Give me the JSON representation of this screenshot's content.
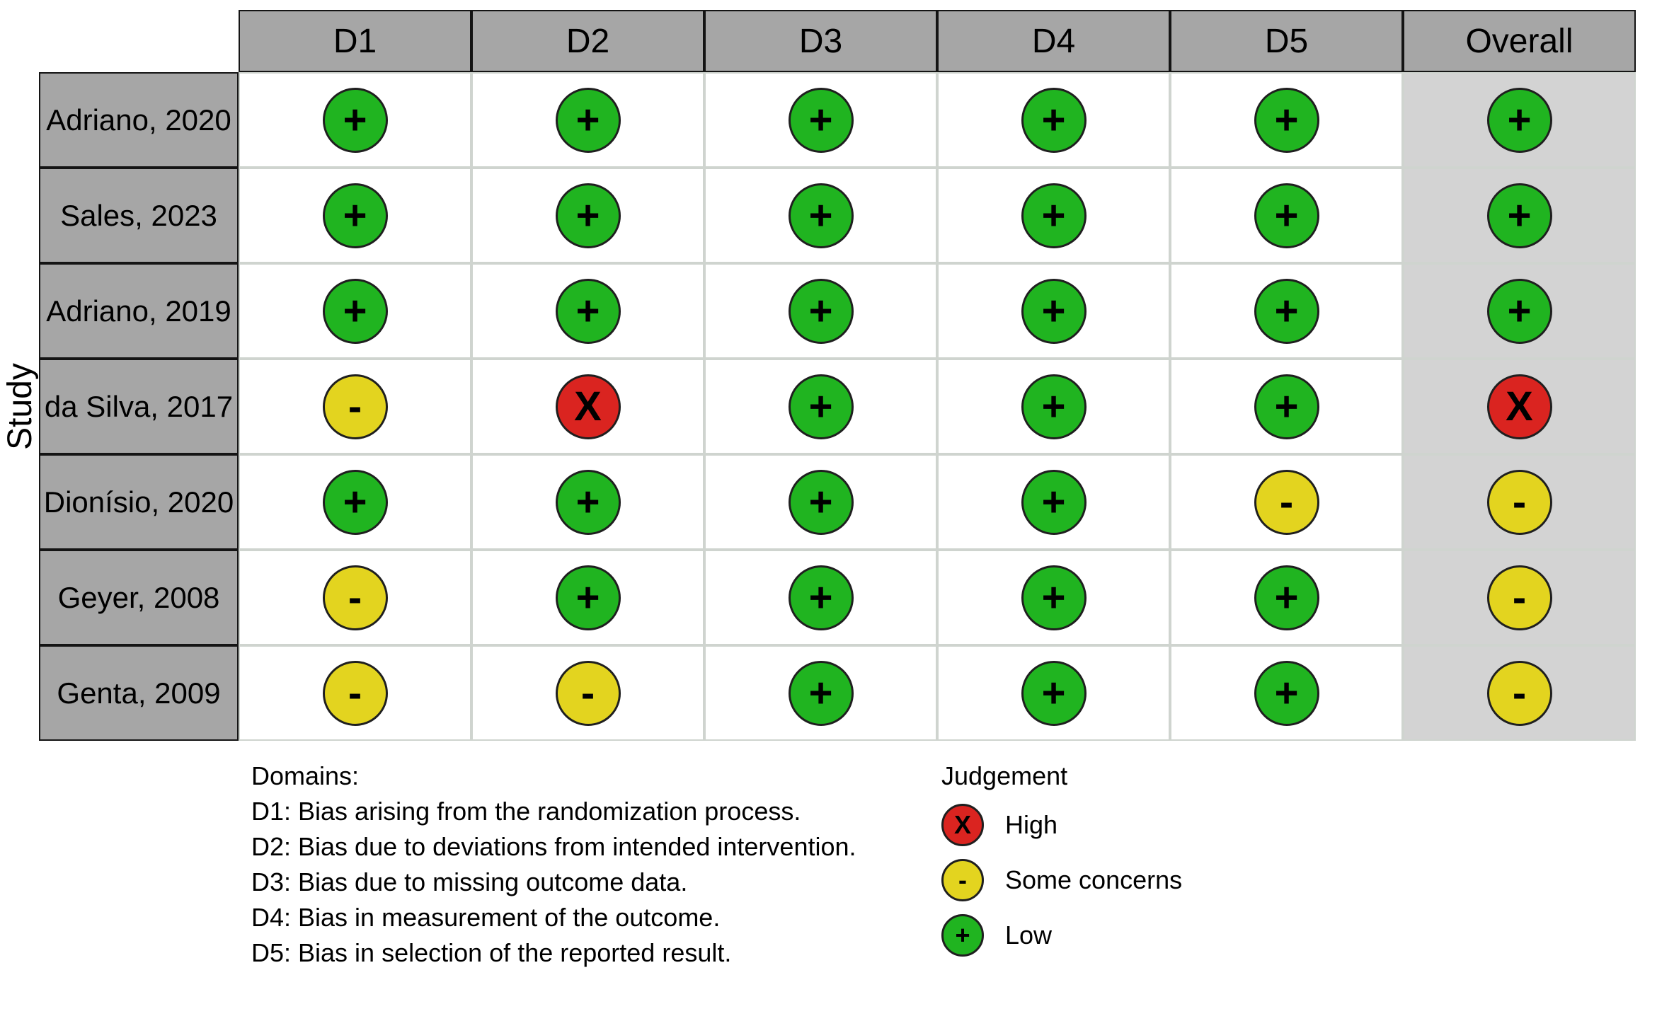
{
  "figure": {
    "row_axis_label": "Study"
  },
  "table": {
    "columns": [
      "D1",
      "D2",
      "D3",
      "D4",
      "D5",
      "Overall"
    ],
    "studies": [
      {
        "name": "Adriano, 2020",
        "judgements": [
          "low",
          "low",
          "low",
          "low",
          "low",
          "low"
        ]
      },
      {
        "name": "Sales, 2023",
        "judgements": [
          "low",
          "low",
          "low",
          "low",
          "low",
          "low"
        ]
      },
      {
        "name": "Adriano, 2019",
        "judgements": [
          "low",
          "low",
          "low",
          "low",
          "low",
          "low"
        ]
      },
      {
        "name": "da Silva, 2017",
        "judgements": [
          "some_concerns",
          "high",
          "low",
          "low",
          "low",
          "high"
        ]
      },
      {
        "name": "Dionísio, 2020",
        "judgements": [
          "low",
          "low",
          "low",
          "low",
          "some_concerns",
          "some_concerns"
        ]
      },
      {
        "name": "Geyer, 2008",
        "judgements": [
          "some_concerns",
          "low",
          "low",
          "low",
          "low",
          "some_concerns"
        ]
      },
      {
        "name": "Genta, 2009",
        "judgements": [
          "some_concerns",
          "some_concerns",
          "low",
          "low",
          "low",
          "some_concerns"
        ]
      }
    ]
  },
  "judgements": {
    "low": {
      "label": "Low",
      "symbol": "+",
      "color": "#20b420"
    },
    "some_concerns": {
      "label": "Some concerns",
      "symbol": "-",
      "color": "#e3d41f"
    },
    "high": {
      "label": "High",
      "symbol": "X",
      "color": "#da2420"
    }
  },
  "footnote": {
    "title": "Domains:",
    "items": [
      "D1: Bias arising from the randomization process.",
      "D2: Bias due to deviations from intended intervention.",
      "D3: Bias due to missing outcome data.",
      "D4: Bias in measurement of the outcome.",
      "D5: Bias in selection of the reported result."
    ]
  },
  "legend": {
    "title": "Judgement",
    "items": [
      {
        "key": "high",
        "label": "High"
      },
      {
        "key": "some_concerns",
        "label": "Some concerns"
      },
      {
        "key": "low",
        "label": "Low"
      }
    ]
  },
  "colors": {
    "header_bg": "#a6a6a6",
    "overall_col_bg": "#d3d3d3",
    "grid_line": "#cfd4cf",
    "circle_border": "#1f1f1f"
  },
  "chart_data": {
    "type": "table",
    "title": "",
    "row_axis_label": "Study",
    "columns": [
      "D1",
      "D2",
      "D3",
      "D4",
      "D5",
      "Overall"
    ],
    "rows": [
      {
        "study": "Adriano, 2020",
        "judgements": [
          "Low",
          "Low",
          "Low",
          "Low",
          "Low",
          "Low"
        ]
      },
      {
        "study": "Sales, 2023",
        "judgements": [
          "Low",
          "Low",
          "Low",
          "Low",
          "Low",
          "Low"
        ]
      },
      {
        "study": "Adriano, 2019",
        "judgements": [
          "Low",
          "Low",
          "Low",
          "Low",
          "Low",
          "Low"
        ]
      },
      {
        "study": "da Silva, 2017",
        "judgements": [
          "Some concerns",
          "High",
          "Low",
          "Low",
          "Low",
          "High"
        ]
      },
      {
        "study": "Dionísio, 2020",
        "judgements": [
          "Low",
          "Low",
          "Low",
          "Low",
          "Some concerns",
          "Some concerns"
        ]
      },
      {
        "study": "Geyer, 2008",
        "judgements": [
          "Some concerns",
          "Low",
          "Low",
          "Low",
          "Low",
          "Some concerns"
        ]
      },
      {
        "study": "Genta, 2009",
        "judgements": [
          "Some concerns",
          "Some concerns",
          "Low",
          "Low",
          "Low",
          "Some concerns"
        ]
      }
    ],
    "legend": [
      "High",
      "Some concerns",
      "Low"
    ],
    "domains": [
      "D1: Bias arising from the randomization process.",
      "D2: Bias due to deviations from intended intervention.",
      "D3: Bias due to missing outcome data.",
      "D4: Bias in measurement of the outcome.",
      "D5: Bias in selection of the reported result."
    ]
  }
}
